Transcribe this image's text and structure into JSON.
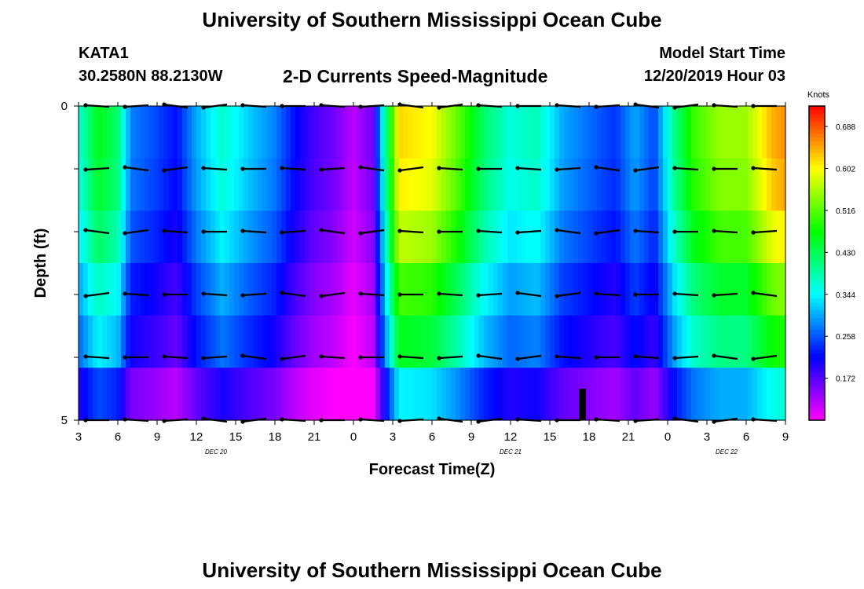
{
  "header": {
    "title": "University of Southern Mississippi Ocean Cube",
    "station": "KATA1",
    "coordinates": "30.2580N 88.2130W",
    "subtitle": "2-D Currents Speed-Magnitude",
    "model_start_label": "Model Start Time",
    "model_start_value": "12/20/2019 Hour 03"
  },
  "footer": {
    "title": "University of Southern Mississippi Ocean Cube"
  },
  "chart_data": {
    "type": "heatmap",
    "title": "2-D Currents Speed-Magnitude",
    "xlabel": "Forecast Time(Z)",
    "ylabel": "Depth (ft)",
    "xlim": [
      3,
      57
    ],
    "ylim": [
      0,
      5
    ],
    "x_ticks": [
      3,
      6,
      9,
      12,
      15,
      18,
      21,
      24,
      27,
      30,
      33,
      36,
      39,
      42,
      45,
      48,
      51,
      54,
      57
    ],
    "x_tick_labels": [
      "3",
      "6",
      "9",
      "12",
      "15",
      "18",
      "21",
      "0",
      "3",
      "6",
      "9",
      "12",
      "15",
      "18",
      "21",
      "0",
      "3",
      "6",
      "9"
    ],
    "y_tick_labels": [
      "0",
      "5"
    ],
    "date_labels": [
      {
        "text": "DEC 20",
        "at": 13.5
      },
      {
        "text": "DEC 21",
        "at": 36
      },
      {
        "text": "DEC 22",
        "at": 52.5
      }
    ],
    "colorbar": {
      "unit": "Knots",
      "vmin": 0.086,
      "vmax": 0.73,
      "ticks": [
        "0.688",
        "0.602",
        "0.516",
        "0.430",
        "0.344",
        "0.258",
        "0.172"
      ],
      "tick_values": [
        0.688,
        0.602,
        0.516,
        0.43,
        0.344,
        0.258,
        0.172
      ]
    },
    "speed_profile_knots": [
      {
        "t": 3,
        "v": 0.36
      },
      {
        "t": 4.5,
        "v": 0.46
      },
      {
        "t": 6,
        "v": 0.42
      },
      {
        "t": 7,
        "v": 0.28
      },
      {
        "t": 9,
        "v": 0.25
      },
      {
        "t": 10.5,
        "v": 0.22
      },
      {
        "t": 12,
        "v": 0.3
      },
      {
        "t": 14,
        "v": 0.37
      },
      {
        "t": 16,
        "v": 0.32
      },
      {
        "t": 18,
        "v": 0.28
      },
      {
        "t": 19.5,
        "v": 0.22
      },
      {
        "t": 21,
        "v": 0.18
      },
      {
        "t": 22.5,
        "v": 0.16
      },
      {
        "t": 24,
        "v": 0.12
      },
      {
        "t": 25.5,
        "v": 0.16
      },
      {
        "t": 26.5,
        "v": 0.4
      },
      {
        "t": 27.5,
        "v": 0.62
      },
      {
        "t": 30,
        "v": 0.6
      },
      {
        "t": 32,
        "v": 0.52
      },
      {
        "t": 34,
        "v": 0.42
      },
      {
        "t": 36,
        "v": 0.36
      },
      {
        "t": 38,
        "v": 0.38
      },
      {
        "t": 40,
        "v": 0.3
      },
      {
        "t": 42,
        "v": 0.27
      },
      {
        "t": 44,
        "v": 0.24
      },
      {
        "t": 45.5,
        "v": 0.3
      },
      {
        "t": 47,
        "v": 0.25
      },
      {
        "t": 48.5,
        "v": 0.4
      },
      {
        "t": 50,
        "v": 0.5
      },
      {
        "t": 52,
        "v": 0.55
      },
      {
        "t": 54,
        "v": 0.55
      },
      {
        "t": 56,
        "v": 0.64
      },
      {
        "t": 57,
        "v": 0.66
      }
    ],
    "depth_factor": [
      1.0,
      0.98,
      0.92,
      0.82,
      0.74,
      0.55
    ],
    "vector_times": [
      4.5,
      7.5,
      10.5,
      13.5,
      16.5,
      19.5,
      22.5,
      25.5,
      28.5,
      31.5,
      34.5,
      37.5,
      40.5,
      43.5,
      46.5,
      49.5,
      52.5,
      55.5
    ],
    "vector_depths": [
      0,
      1,
      2,
      3,
      4,
      5
    ],
    "vector_direction": "westward"
  }
}
